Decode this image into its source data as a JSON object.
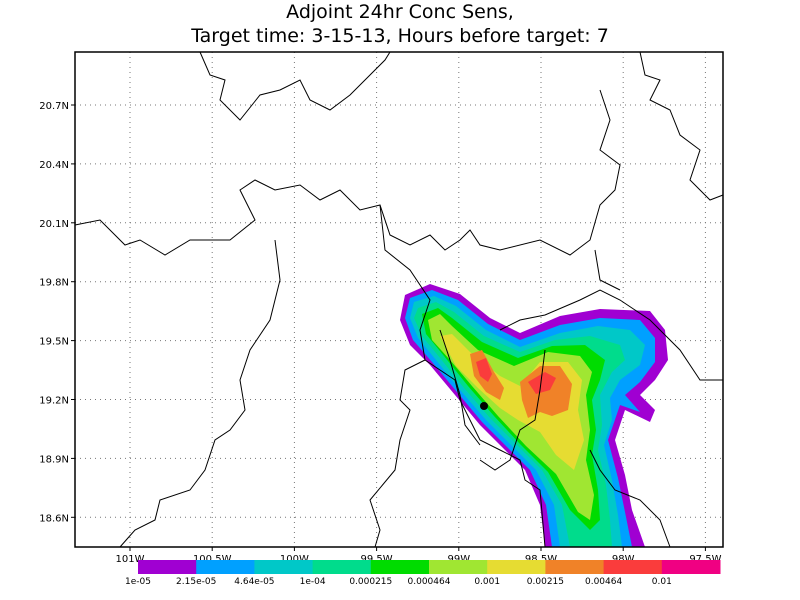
{
  "title": [
    "Adjoint 24hr Conc Sens,",
    "Target time: 3-15-13, Hours before target: 7"
  ],
  "lat_labels": [
    "20.7N",
    "20.4N",
    "20.1N",
    "19.8N",
    "19.5N",
    "19.2N",
    "18.9N",
    "18.6N"
  ],
  "lon_labels": [
    "101W",
    "100.5W",
    "100W",
    "99.5W",
    "99W",
    "98.5W",
    "98W",
    "97.5W"
  ],
  "colorbar": {
    "colors": [
      "#a000d2",
      "#00a0ff",
      "#00c8c8",
      "#00dc8c",
      "#00dc00",
      "#a0e632",
      "#e6dc32",
      "#f08228",
      "#fa3c3c",
      "#f00082"
    ],
    "labels": [
      "1e-05",
      "2.15e-05",
      "4.64e-05",
      "1e-04",
      "0.000215",
      "0.000464",
      "0.001",
      "0.00215",
      "0.00464",
      "0.01"
    ]
  }
}
